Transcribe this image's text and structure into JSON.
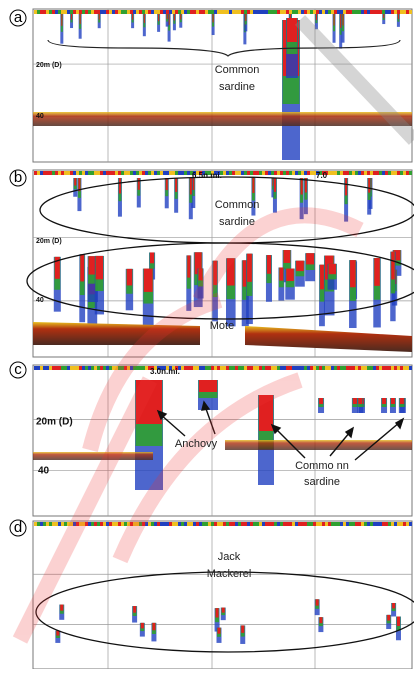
{
  "panels": [
    {
      "label": "a",
      "depth_20": "20m (D)",
      "depth_40": "40",
      "species": [
        "Common",
        "sardine"
      ]
    },
    {
      "label": "b",
      "distance_marks": [
        "6.5n.mi.",
        "7.0"
      ],
      "depth_20": "20m (D)",
      "depth_40": "40",
      "species": [
        "Common",
        "sardine"
      ],
      "bottom_label": "Mote"
    },
    {
      "label": "c",
      "distance_marks": [
        "3.0n.mi."
      ],
      "depth_20": "20m (D)",
      "depth_40": "40",
      "species_1": "Anchovy",
      "species_2": [
        "Commo nn",
        "sardine"
      ]
    },
    {
      "label": "d",
      "species": [
        "Jack",
        "Mackerel"
      ]
    }
  ]
}
